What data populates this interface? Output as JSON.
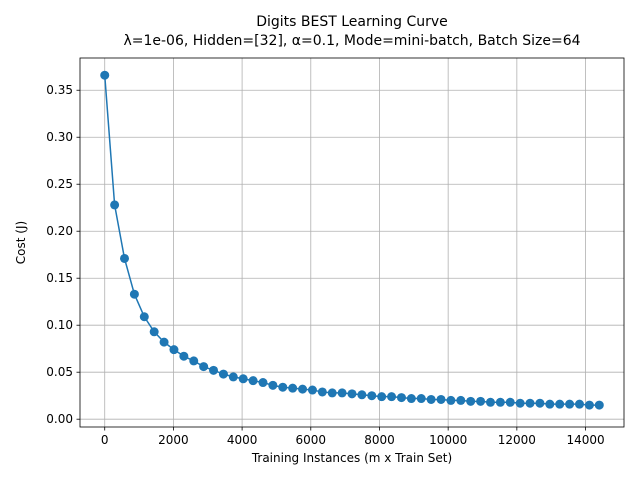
{
  "chart_data": {
    "type": "line",
    "title": "Digits BEST Learning Curve",
    "subtitle": "λ=1e-06,  Hidden=[32], α=0.1, Mode=mini-batch, Batch Size=64",
    "xlabel": "Training Instances (m x Train Set)",
    "ylabel": "Cost (J)",
    "xlim": [
      -720,
      15120
    ],
    "ylim": [
      -0.0083,
      0.3843
    ],
    "xticks": [
      0,
      2000,
      4000,
      6000,
      8000,
      10000,
      12000,
      14000
    ],
    "xtick_labels": [
      "0",
      "2000",
      "4000",
      "6000",
      "8000",
      "10000",
      "12000",
      "14000"
    ],
    "yticks": [
      0.0,
      0.05,
      0.1,
      0.15,
      0.2,
      0.25,
      0.3,
      0.35
    ],
    "ytick_labels": [
      "0.00",
      "0.05",
      "0.10",
      "0.15",
      "0.20",
      "0.25",
      "0.30",
      "0.35"
    ],
    "grid": true,
    "color": "#1f77b4",
    "marker": "circle",
    "series": [
      {
        "name": "cost",
        "x": [
          0,
          288,
          576,
          864,
          1152,
          1440,
          1728,
          2016,
          2304,
          2592,
          2880,
          3168,
          3456,
          3744,
          4032,
          4320,
          4608,
          4896,
          5184,
          5472,
          5760,
          6048,
          6336,
          6624,
          6912,
          7200,
          7488,
          7776,
          8064,
          8352,
          8640,
          8928,
          9216,
          9504,
          9792,
          10080,
          10368,
          10656,
          10944,
          11232,
          11520,
          11808,
          12096,
          12384,
          12672,
          12960,
          13248,
          13536,
          13824,
          14112,
          14400
        ],
        "y": [
          0.366,
          0.228,
          0.171,
          0.133,
          0.109,
          0.093,
          0.082,
          0.074,
          0.067,
          0.062,
          0.056,
          0.052,
          0.048,
          0.045,
          0.043,
          0.041,
          0.039,
          0.036,
          0.034,
          0.033,
          0.032,
          0.031,
          0.029,
          0.028,
          0.028,
          0.027,
          0.026,
          0.025,
          0.024,
          0.024,
          0.023,
          0.022,
          0.022,
          0.021,
          0.021,
          0.02,
          0.02,
          0.019,
          0.019,
          0.018,
          0.018,
          0.018,
          0.017,
          0.017,
          0.017,
          0.016,
          0.016,
          0.016,
          0.016,
          0.015,
          0.015
        ]
      }
    ]
  }
}
